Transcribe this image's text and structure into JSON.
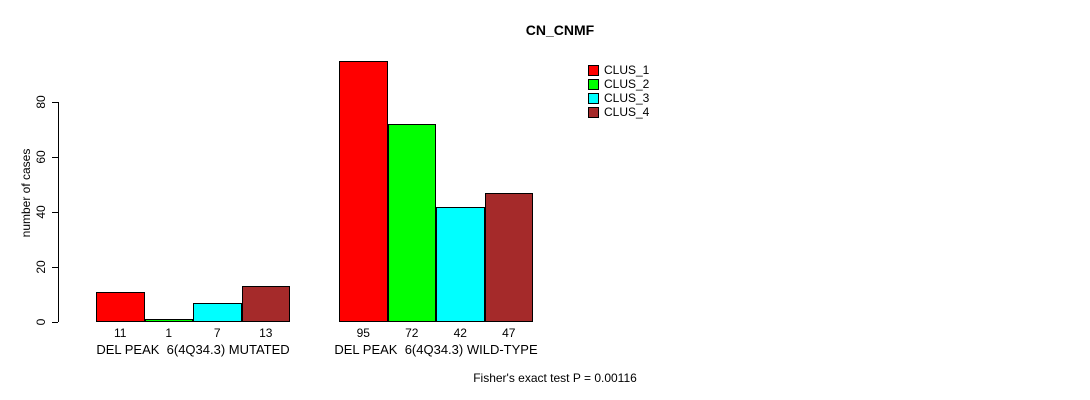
{
  "chart_data": {
    "type": "bar",
    "title": "CN_CNMF",
    "ylabel": "number of cases",
    "xlabel": "",
    "ylim": [
      0,
      80
    ],
    "yticks": [
      0,
      20,
      40,
      60,
      80
    ],
    "grid": false,
    "legend_position": "top-right",
    "categories": [
      "DEL PEAK  6(4Q34.3) MUTATED",
      "DEL PEAK  6(4Q34.3) WILD-TYPE"
    ],
    "series": [
      {
        "name": "CLUS_1",
        "color": "#ff0000",
        "values": [
          11,
          95
        ]
      },
      {
        "name": "CLUS_2",
        "color": "#00ff00",
        "values": [
          1,
          72
        ]
      },
      {
        "name": "CLUS_3",
        "color": "#00ffff",
        "values": [
          7,
          42
        ]
      },
      {
        "name": "CLUS_4",
        "color": "#a52a2a",
        "values": [
          13,
          47
        ]
      }
    ],
    "bar_value_labels": [
      [
        11,
        1,
        7,
        13
      ],
      [
        95,
        72,
        42,
        47
      ]
    ],
    "annotation": "Fisher's exact test P = 0.00116"
  }
}
